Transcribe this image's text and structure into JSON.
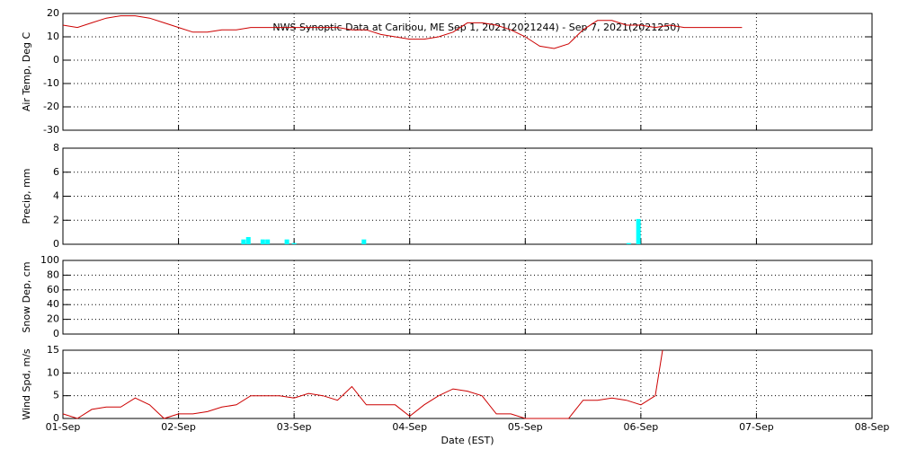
{
  "chart_data": [
    {
      "type": "line",
      "title": "NWS Synoptic Data at Caribou, ME   Sep  1, 2021(2021244) - Sep  7, 2021(2021250)",
      "ylabel": "Air Temp, Deg C",
      "color": "#cc0000",
      "grid": true,
      "x": [
        1,
        1.125,
        1.25,
        1.375,
        1.5,
        1.625,
        1.75,
        1.875,
        2,
        2.125,
        2.25,
        2.375,
        2.5,
        2.625,
        2.75,
        2.875,
        3,
        3.125,
        3.25,
        3.375,
        3.5,
        3.625,
        3.75,
        3.875,
        4,
        4.125,
        4.25,
        4.375,
        4.5,
        4.625,
        4.75,
        4.875,
        5,
        5.125,
        5.25,
        5.375,
        5.5,
        5.625,
        5.75,
        5.875,
        6,
        6.125,
        6.25,
        6.375,
        6.5,
        6.625,
        6.75,
        6.875
      ],
      "values": [
        15,
        14,
        16,
        18,
        19,
        19,
        18,
        16,
        14,
        12,
        12,
        13,
        13,
        14,
        14,
        14,
        14,
        14,
        14,
        14,
        13,
        13,
        11,
        10,
        9,
        9,
        10,
        12,
        16,
        16,
        15,
        13,
        10,
        6,
        5,
        7,
        13,
        17,
        17,
        15,
        15,
        14,
        15,
        14,
        14,
        14,
        14,
        14
      ],
      "xlim": [
        1,
        8
      ],
      "xticks": [
        1,
        2,
        3,
        4,
        5,
        6,
        7,
        8
      ],
      "ylim": [
        -30,
        20
      ],
      "yticks": [
        -30,
        -20,
        -10,
        0,
        10,
        20
      ]
    },
    {
      "type": "bar",
      "ylabel": "Precip, mm",
      "color": "#00ffff",
      "grid": true,
      "x": [
        2.5625,
        2.6042,
        2.7292,
        2.7708,
        2.9375,
        3.0,
        3.6042,
        5.8958,
        5.9792
      ],
      "values": [
        0.4,
        0.6,
        0.4,
        0.4,
        0.4,
        0.1,
        0.4,
        0.1,
        2.1
      ],
      "xlim": [
        1,
        8
      ],
      "xticks": [
        1,
        2,
        3,
        4,
        5,
        6,
        7,
        8
      ],
      "ylim": [
        0,
        8
      ],
      "yticks": [
        0,
        2,
        4,
        6,
        8
      ]
    },
    {
      "type": "line",
      "ylabel": "Snow Dep, cm",
      "grid": true,
      "xlim": [
        1,
        8
      ],
      "xticks": [
        1,
        2,
        3,
        4,
        5,
        6,
        7,
        8
      ],
      "ylim": [
        0,
        100
      ],
      "yticks": [
        0,
        20,
        40,
        60,
        80,
        100
      ]
    },
    {
      "type": "line",
      "ylabel": "Wind Spd, m/s",
      "xlabel": "Date (EST)",
      "color": "#cc0000",
      "grid": true,
      "x": [
        1,
        1.125,
        1.25,
        1.375,
        1.5,
        1.625,
        1.75,
        1.875,
        2,
        2.125,
        2.25,
        2.375,
        2.5,
        2.625,
        2.75,
        2.875,
        3,
        3.125,
        3.25,
        3.375,
        3.5,
        3.625,
        3.75,
        3.875,
        4,
        4.125,
        4.25,
        4.375,
        4.5,
        4.625,
        4.75,
        4.875,
        5,
        5.125,
        5.25,
        5.375,
        5.5,
        5.625,
        5.75,
        5.875,
        6,
        6.125,
        6.1875
      ],
      "values": [
        1,
        0,
        2,
        2.5,
        2.5,
        4.5,
        3,
        0,
        1,
        1,
        1.5,
        2.5,
        3,
        5,
        5,
        5,
        4.5,
        5.5,
        5,
        4,
        7,
        3,
        3,
        3,
        0.5,
        3,
        5,
        6.5,
        6,
        5,
        1,
        1,
        0,
        0,
        0,
        0,
        4,
        4,
        4.5,
        4,
        3,
        5,
        15
      ],
      "xlim": [
        1,
        8
      ],
      "xticks": [
        {
          "value": 1,
          "label": "01-Sep"
        },
        {
          "value": 2,
          "label": "02-Sep"
        },
        {
          "value": 3,
          "label": "03-Sep"
        },
        {
          "value": 4,
          "label": "04-Sep"
        },
        {
          "value": 5,
          "label": "05-Sep"
        },
        {
          "value": 6,
          "label": "06-Sep"
        },
        {
          "value": 7,
          "label": "07-Sep"
        },
        {
          "value": 8,
          "label": "08-Sep"
        }
      ],
      "ylim": [
        0,
        15
      ],
      "yticks": [
        0,
        5,
        10,
        15
      ]
    }
  ]
}
